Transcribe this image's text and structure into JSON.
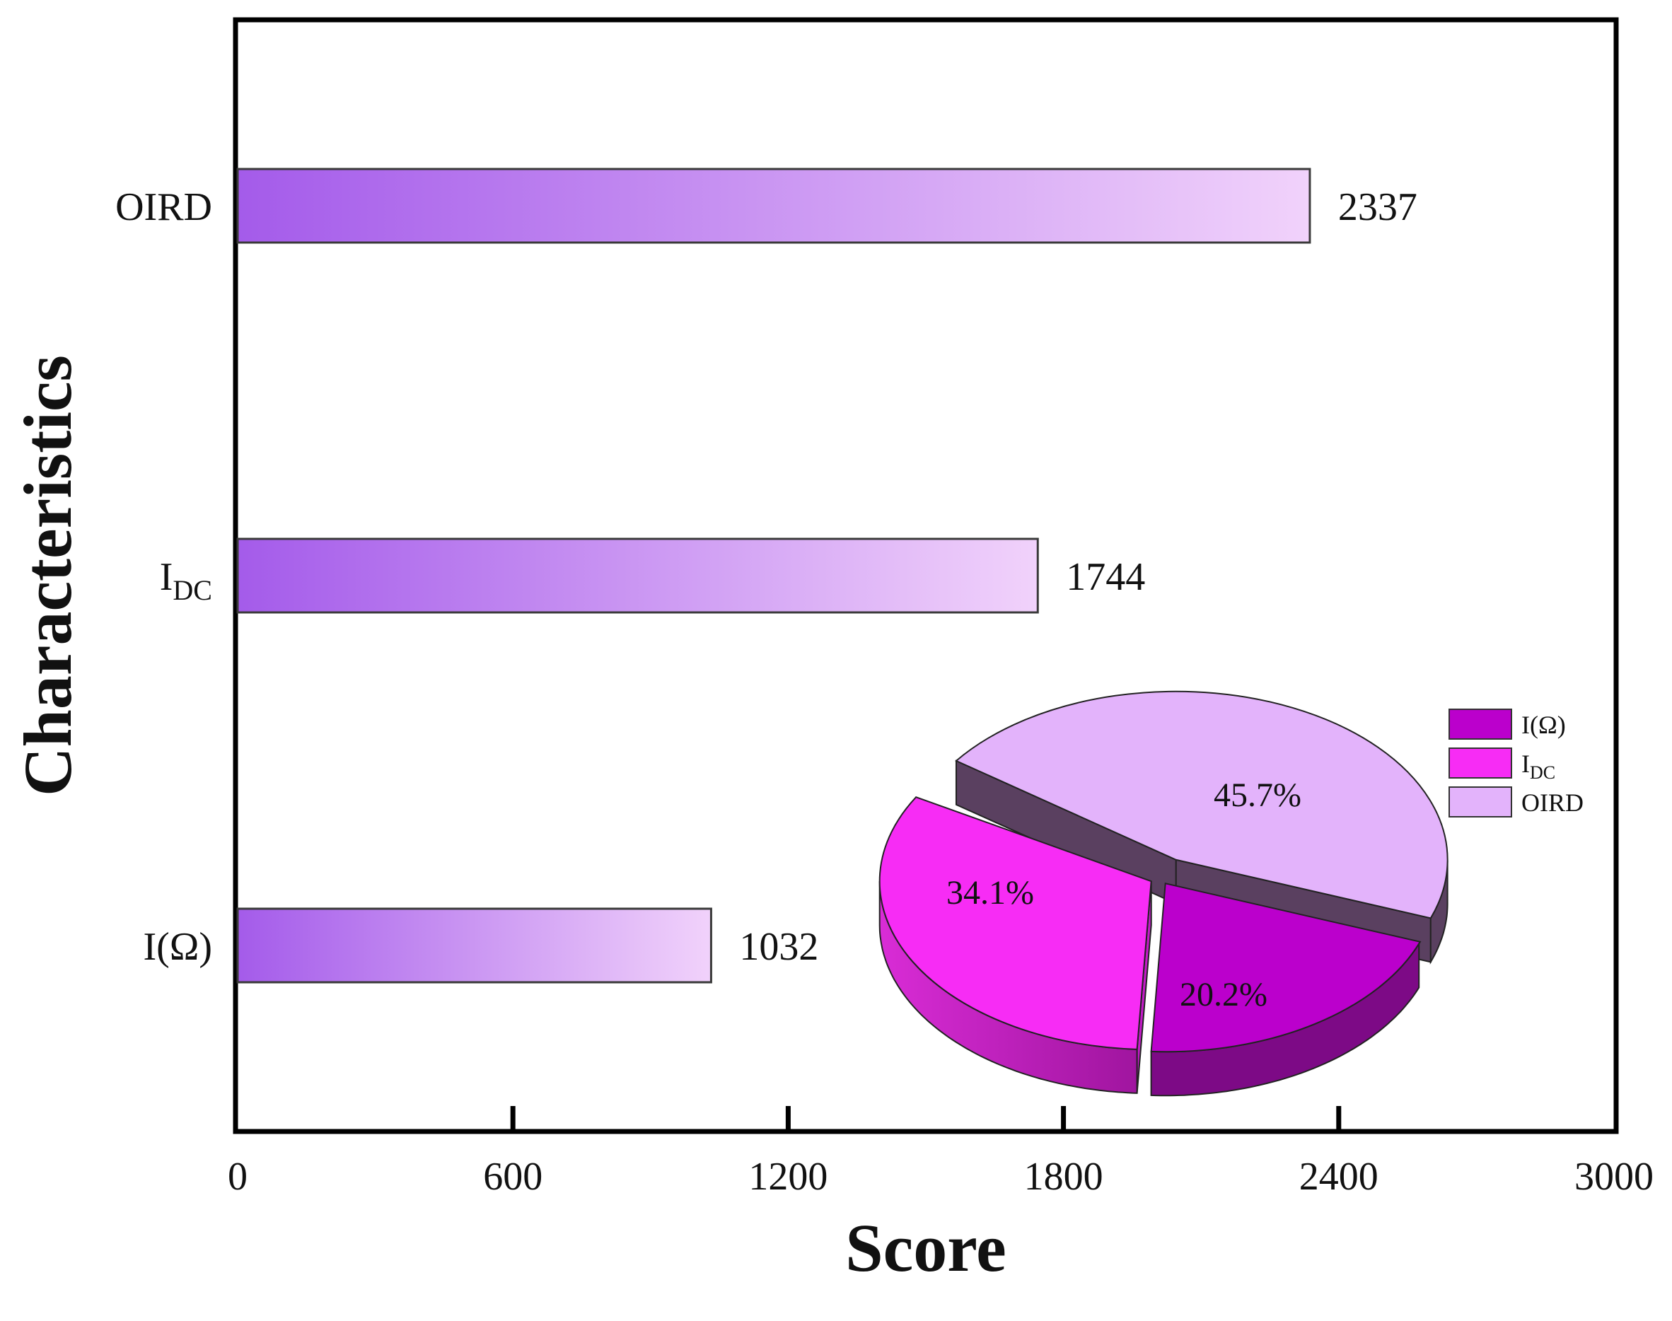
{
  "chart_data": [
    {
      "type": "bar",
      "orientation": "horizontal",
      "title": "",
      "xlabel": "Score",
      "ylabel": "Characteristics",
      "xlim": [
        0,
        3000
      ],
      "xticks": [
        "0",
        "600",
        "1200",
        "1800",
        "2400",
        "3000"
      ],
      "categories": [
        {
          "main": "I(Ω)",
          "sub": ""
        },
        {
          "main": "I",
          "sub": "DC"
        },
        {
          "main": "OIRD",
          "sub": ""
        }
      ],
      "values": [
        1032,
        1744,
        2337
      ],
      "value_labels": [
        "1032",
        "1744",
        "2337"
      ],
      "grid": false,
      "bar_gradient": [
        "#a45bea",
        "#f1d2fb"
      ]
    },
    {
      "type": "pie",
      "style": "3d-exploded",
      "slices": [
        {
          "name": "I(Ω)",
          "sub": "",
          "value": 20.2,
          "label": "20.2%",
          "color": "#bb00cc"
        },
        {
          "name": "I",
          "sub": "DC",
          "value": 34.1,
          "label": "34.1%",
          "color": "#f72cf5"
        },
        {
          "name": "OIRD",
          "sub": "",
          "value": 45.7,
          "label": "45.7%",
          "color": "#e3b3fb"
        }
      ],
      "legend_position": "right"
    }
  ]
}
